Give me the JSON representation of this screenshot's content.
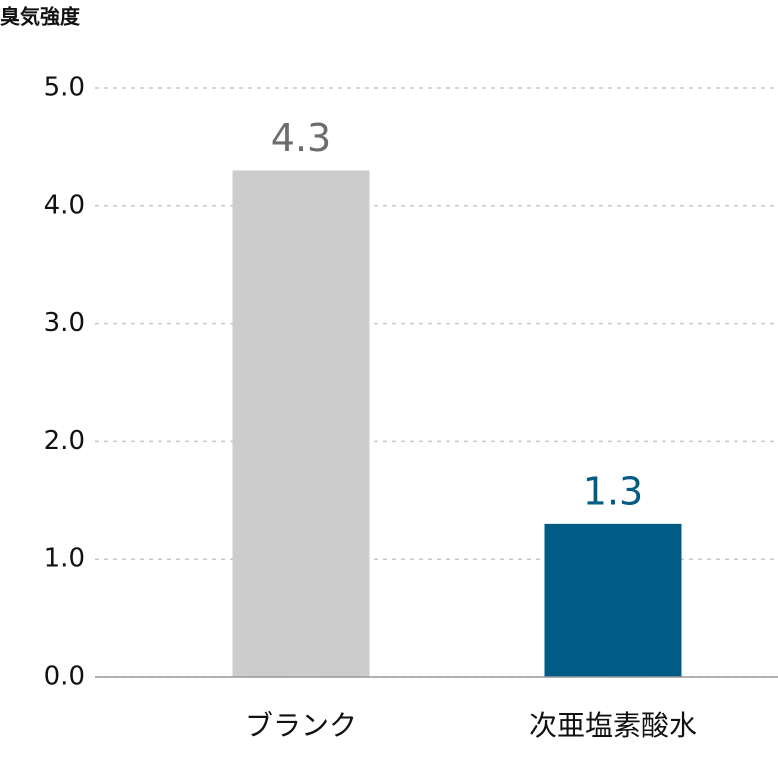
{
  "chart_data": {
    "type": "bar",
    "title": "臭気強度",
    "categories": [
      "ブランク",
      "次亜塩素酸水"
    ],
    "values": [
      4.3,
      1.3
    ],
    "colors": [
      "#cccccc",
      "#005b85"
    ],
    "label_colors": [
      "#6d6d6d",
      "#005b85"
    ],
    "ylim": [
      0,
      5
    ],
    "yticks": [
      {
        "value": 0,
        "label": "0.0"
      },
      {
        "value": 1,
        "label": "1.0"
      },
      {
        "value": 2,
        "label": "2.0"
      },
      {
        "value": 3,
        "label": "3.0"
      },
      {
        "value": 4,
        "label": "4.0"
      },
      {
        "value": 5,
        "label": "5.0"
      }
    ],
    "grid": true
  }
}
